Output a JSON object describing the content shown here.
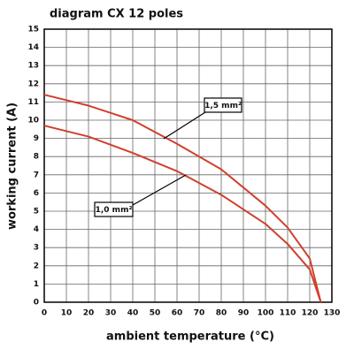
{
  "chart_data": {
    "type": "line",
    "title": "diagram CX 12 poles",
    "x_label": "ambient temperature (°C)",
    "y_label": "working current (A)",
    "x": [
      0,
      20,
      40,
      60,
      80,
      100,
      110,
      120,
      125
    ],
    "series": [
      {
        "name": "1,5 mm²",
        "color": "#d0402e",
        "values": [
          11.4,
          10.8,
          10.0,
          8.7,
          7.3,
          5.3,
          4.1,
          2.4,
          0
        ]
      },
      {
        "name": "1,0 mm²",
        "color": "#d0402e",
        "values": [
          9.7,
          9.1,
          8.2,
          7.2,
          5.9,
          4.3,
          3.2,
          1.8,
          0
        ]
      }
    ],
    "xlim": [
      0,
      130
    ],
    "xticks": [
      0,
      10,
      20,
      30,
      40,
      50,
      60,
      70,
      80,
      90,
      100,
      110,
      120,
      130
    ],
    "ylim": [
      0,
      15
    ],
    "yticks": [
      0,
      1,
      2,
      3,
      4,
      5,
      6,
      7,
      8,
      9,
      10,
      11,
      12,
      13,
      14,
      15
    ],
    "grid": true
  }
}
